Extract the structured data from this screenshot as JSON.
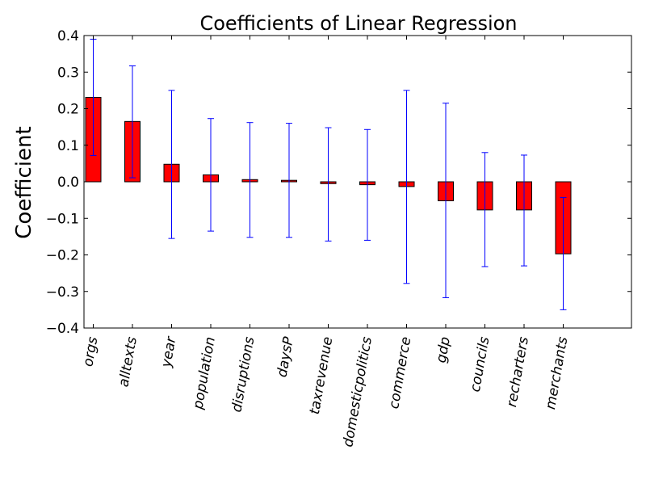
{
  "chart_data": {
    "type": "bar",
    "title": "Coefficients of Linear Regression",
    "xlabel": "",
    "ylabel": "Coefficient",
    "ylim": [
      -0.4,
      0.4
    ],
    "yticks": [
      "0.4",
      "0.3",
      "0.2",
      "0.1",
      "0.0",
      "−0.1",
      "−0.2",
      "−0.3",
      "−0.4"
    ],
    "ytick_values": [
      0.4,
      0.3,
      0.2,
      0.1,
      0.0,
      -0.1,
      -0.2,
      -0.3,
      -0.4
    ],
    "grid": false,
    "categories": [
      "orgs",
      "alltexts",
      "year",
      "population",
      "disruptions",
      "daysP",
      "taxrevenue",
      "domesticpolitics",
      "commerce",
      "gdp",
      "councils",
      "recharters",
      "merchants"
    ],
    "values": [
      0.231,
      0.165,
      0.048,
      0.019,
      0.006,
      0.004,
      -0.005,
      -0.008,
      -0.013,
      -0.052,
      -0.077,
      -0.077,
      -0.197
    ],
    "error_low": [
      0.072,
      0.011,
      -0.155,
      -0.135,
      -0.152,
      -0.152,
      -0.162,
      -0.16,
      -0.278,
      -0.317,
      -0.232,
      -0.23,
      -0.35
    ],
    "error_high": [
      0.39,
      0.317,
      0.25,
      0.173,
      0.162,
      0.16,
      0.148,
      0.143,
      0.25,
      0.215,
      0.08,
      0.073,
      -0.043
    ],
    "colors": {
      "bar_fill": "#ff0000",
      "bar_edge": "#000000",
      "error_bar": "#0000ff",
      "axes": "#000000"
    }
  }
}
